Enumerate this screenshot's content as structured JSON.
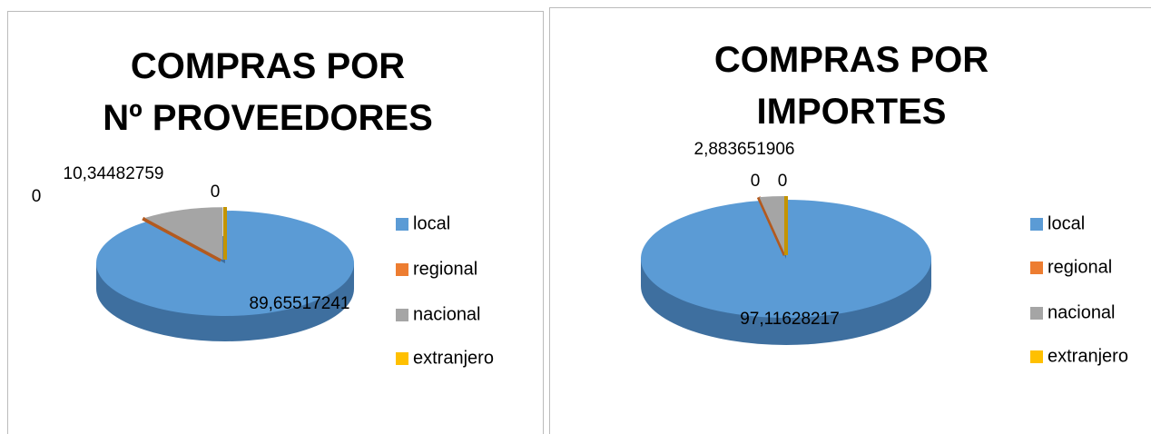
{
  "chart_data": [
    {
      "type": "pie",
      "title": "COMPRAS POR Nº PROVEEDORES",
      "categories": [
        "local",
        "regional",
        "nacional",
        "extranjero"
      ],
      "values": [
        89.65517241,
        0,
        10.34482759,
        0
      ],
      "value_labels": [
        "89,65517241",
        "0",
        "10,34482759",
        "0"
      ],
      "colors": [
        "#5b9bd5",
        "#ed7d31",
        "#a5a5a5",
        "#ffc000"
      ],
      "legend": "right"
    },
    {
      "type": "pie",
      "title": "COMPRAS POR IMPORTES",
      "categories": [
        "local",
        "regional",
        "nacional",
        "extranjero"
      ],
      "values": [
        97.11628217,
        0,
        2.883651906,
        0
      ],
      "value_labels": [
        "97,11628217",
        "0",
        "2,883651906",
        "0"
      ],
      "colors": [
        "#5b9bd5",
        "#ed7d31",
        "#a5a5a5",
        "#ffc000"
      ],
      "legend": "right"
    }
  ]
}
